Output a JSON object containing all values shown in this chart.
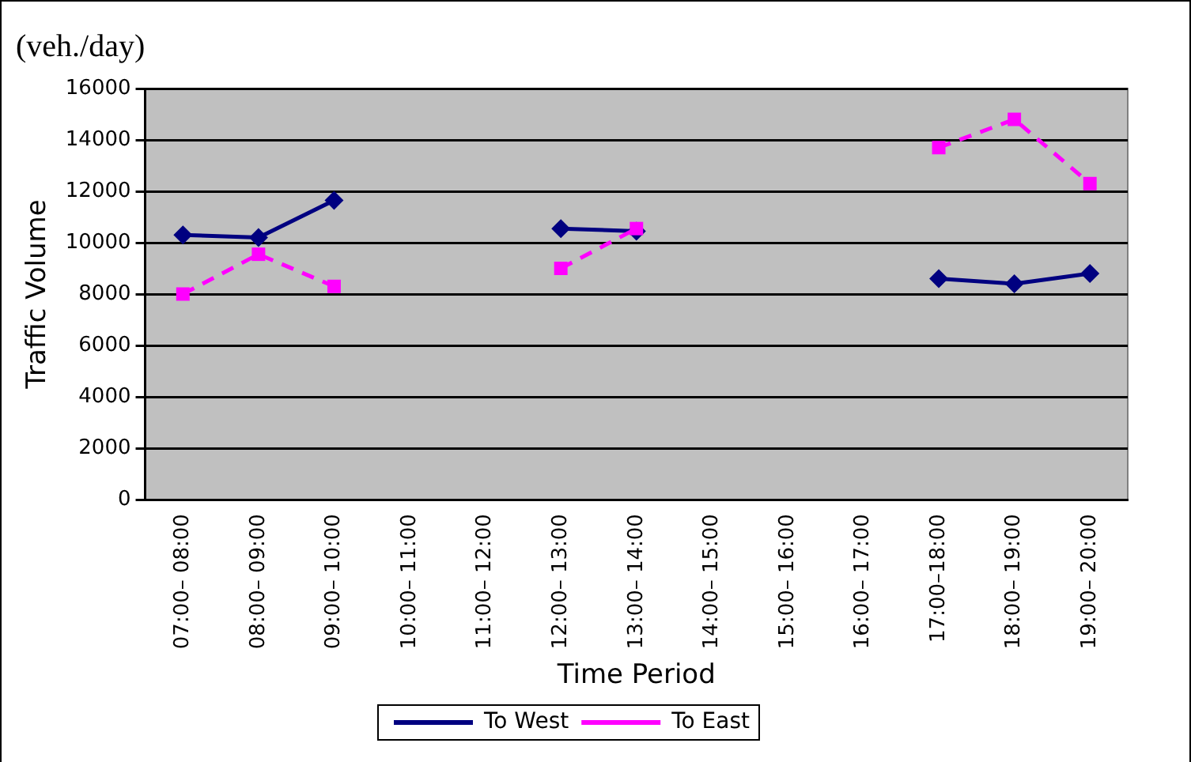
{
  "chart_data": {
    "type": "line",
    "title": "(veh./day)",
    "xlabel": "Time Period",
    "ylabel": "Traffic Volume",
    "categories": [
      "07:00– 08:00",
      "08:00– 09:00",
      "09:00– 10:00",
      "10:00– 11:00",
      "11:00– 12:00",
      "12:00– 13:00",
      "13:00– 14:00",
      "14:00– 15:00",
      "15:00– 16:00",
      "16:00– 17:00",
      "17:00–18:00",
      "18:00– 19:00",
      "19:00– 20:00"
    ],
    "series": [
      {
        "name": "To West",
        "color": "#000080",
        "marker": "diamond",
        "line_style": "solid",
        "values": [
          10300,
          10200,
          11650,
          null,
          null,
          10550,
          10450,
          null,
          null,
          null,
          8600,
          8400,
          8800
        ]
      },
      {
        "name": "To East",
        "color": "#ff00ff",
        "marker": "square",
        "line_style": "dashed",
        "values": [
          8000,
          9550,
          8300,
          null,
          null,
          9000,
          10550,
          null,
          null,
          null,
          13700,
          14800,
          12300
        ]
      }
    ],
    "ylim": [
      0,
      16000
    ],
    "yticks": [
      0,
      2000,
      4000,
      6000,
      8000,
      10000,
      12000,
      14000,
      16000
    ],
    "grid": "y",
    "legend": "bottom"
  }
}
